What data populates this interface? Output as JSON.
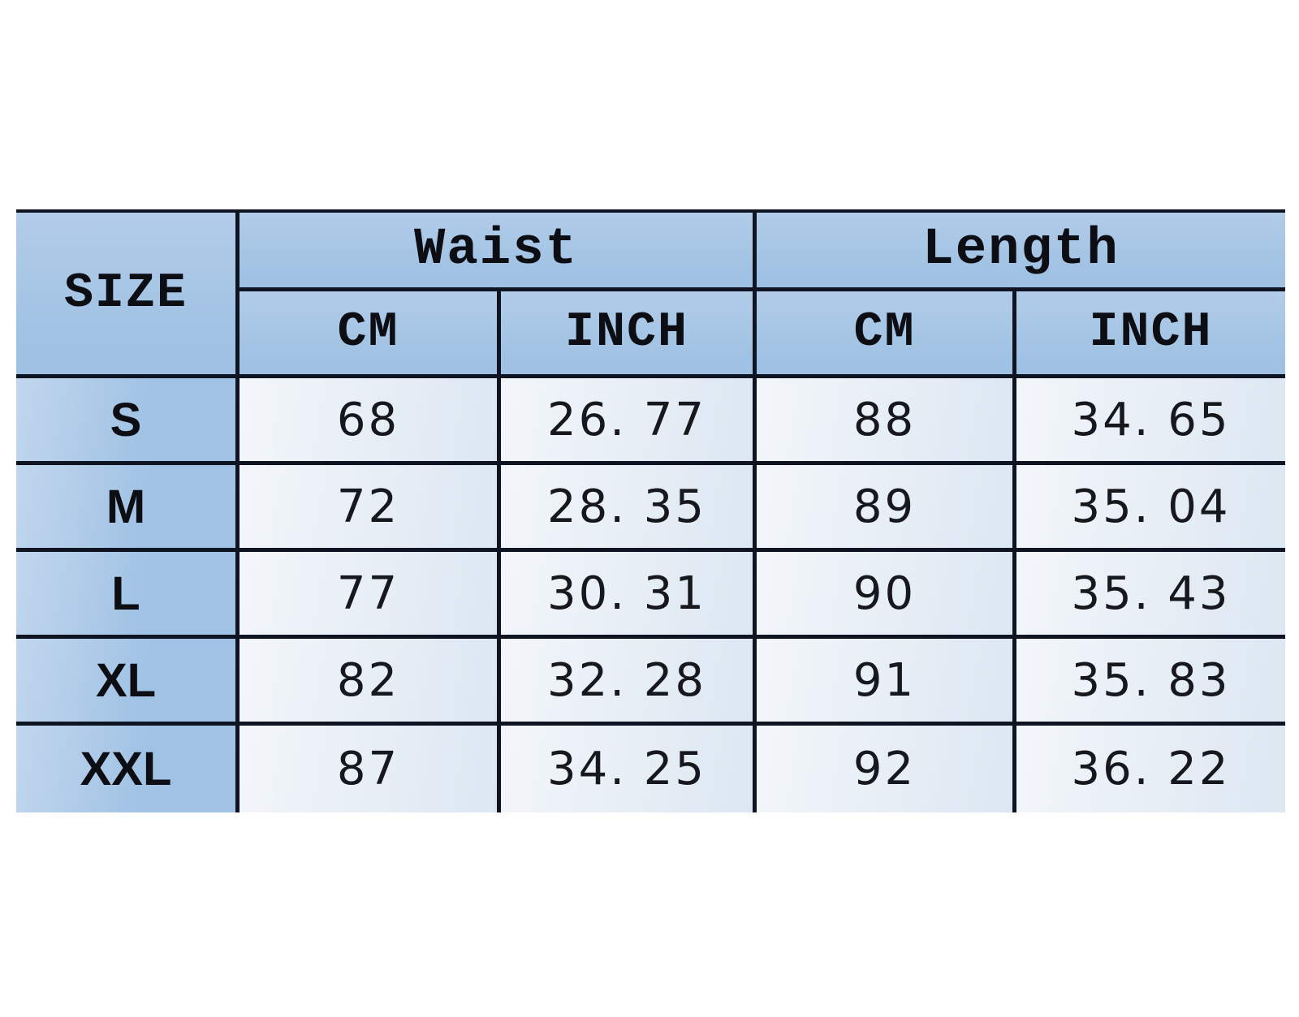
{
  "colors": {
    "line": "#0f1422",
    "blue-a": "#b2cce9",
    "blue-b": "#9fc1e3",
    "blue-label-a": "#c2d6ee",
    "blue-label-b": "#a0c2e4",
    "cell-a": "#f3f6fa",
    "cell-b": "#dce7f2",
    "txt-head": "#0c0e13",
    "txt-num": "#16181d"
  },
  "table": {
    "headers": {
      "size": "SIZE",
      "waist": "Waist",
      "length": "Length",
      "cm": "CM",
      "inch": "INCH"
    },
    "rows": [
      {
        "size": "S",
        "waist_cm": "68",
        "waist_inch": "26. 77",
        "length_cm": "88",
        "length_inch": "34. 65"
      },
      {
        "size": "M",
        "waist_cm": "72",
        "waist_inch": "28. 35",
        "length_cm": "89",
        "length_inch": "35. 04"
      },
      {
        "size": "L",
        "waist_cm": "77",
        "waist_inch": "30. 31",
        "length_cm": "90",
        "length_inch": "35. 43"
      },
      {
        "size": "XL",
        "waist_cm": "82",
        "waist_inch": "32. 28",
        "length_cm": "91",
        "length_inch": "35. 83"
      },
      {
        "size": "XXL",
        "waist_cm": "87",
        "waist_inch": "34. 25",
        "length_cm": "92",
        "length_inch": "36. 22"
      }
    ]
  },
  "chart_data": {
    "type": "table",
    "columns": [
      "SIZE",
      "Waist CM",
      "Waist INCH",
      "Length CM",
      "Length INCH"
    ],
    "rows": [
      [
        "S",
        68,
        26.77,
        88,
        34.65
      ],
      [
        "M",
        72,
        28.35,
        89,
        35.04
      ],
      [
        "L",
        77,
        30.31,
        90,
        35.43
      ],
      [
        "XL",
        82,
        32.28,
        91,
        35.83
      ],
      [
        "XXL",
        87,
        34.25,
        92,
        36.22
      ]
    ],
    "header_levels": {
      "groups": [
        "Waist",
        "Length"
      ],
      "subcolumns_per_group": [
        "CM",
        "INCH"
      ]
    },
    "grid": "on",
    "units": [
      "cm",
      "inch"
    ]
  }
}
